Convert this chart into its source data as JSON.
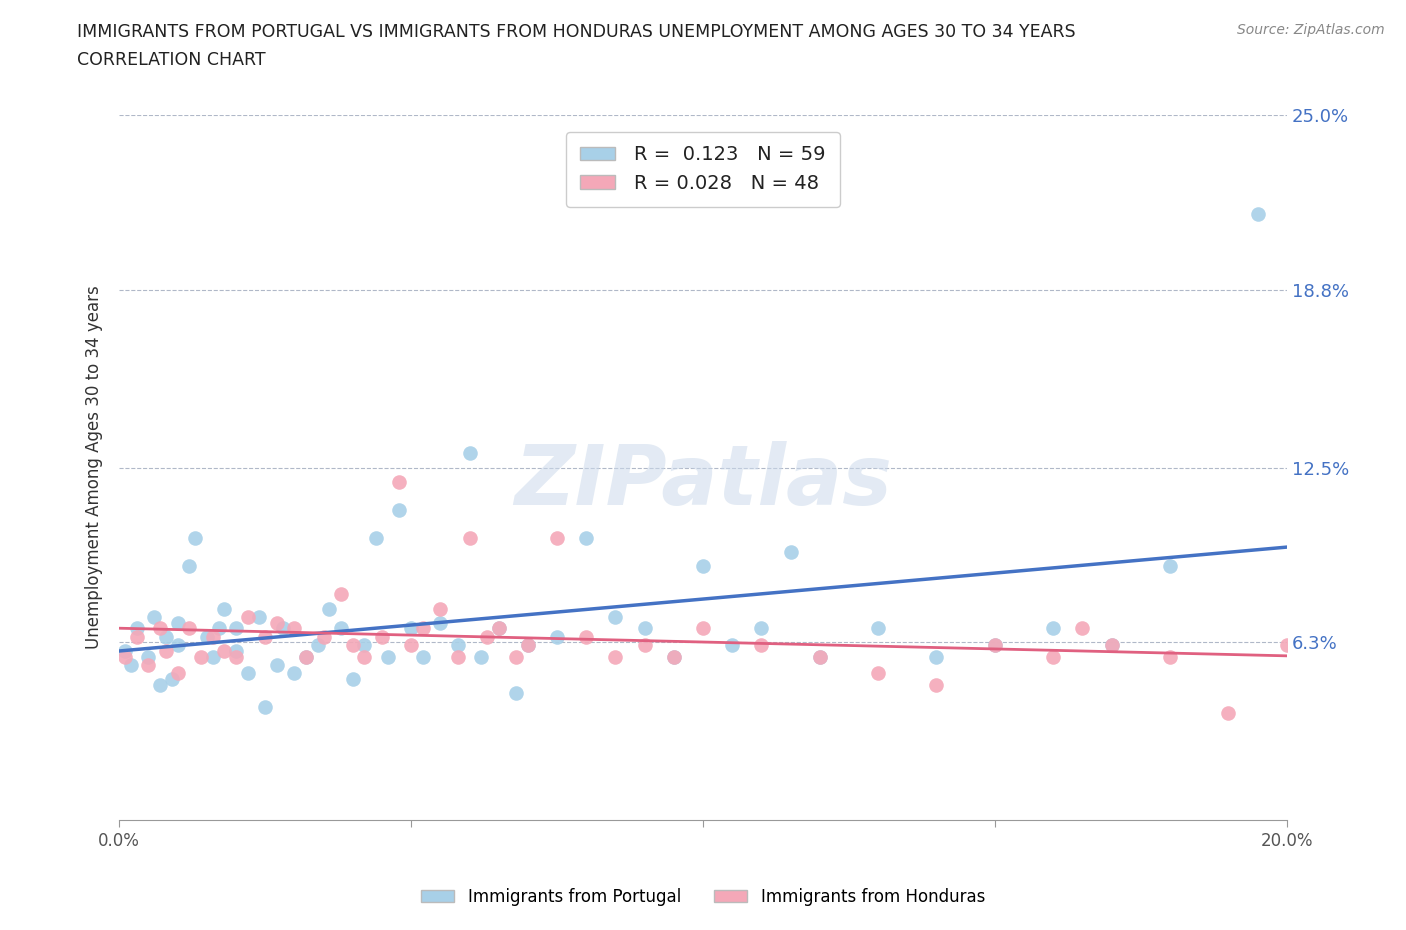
{
  "title_line1": "IMMIGRANTS FROM PORTUGAL VS IMMIGRANTS FROM HONDURAS UNEMPLOYMENT AMONG AGES 30 TO 34 YEARS",
  "title_line2": "CORRELATION CHART",
  "source_text": "Source: ZipAtlas.com",
  "ylabel": "Unemployment Among Ages 30 to 34 years",
  "xlim": [
    0.0,
    0.2
  ],
  "ylim": [
    0.0,
    0.25
  ],
  "ytick_values": [
    0.0,
    0.063,
    0.125,
    0.188,
    0.25
  ],
  "ytick_labels": [
    "",
    "6.3%",
    "12.5%",
    "18.8%",
    "25.0%"
  ],
  "xtick_values": [
    0.0,
    0.05,
    0.1,
    0.15,
    0.2
  ],
  "xtick_labels": [
    "0.0%",
    "",
    "",
    "",
    "20.0%"
  ],
  "legend_label1": "Immigrants from Portugal",
  "legend_label2": "Immigrants from Honduras",
  "R1": 0.123,
  "N1": 59,
  "R2": 0.028,
  "N2": 48,
  "color_portugal": "#a8d0e8",
  "color_honduras": "#f4a8b8",
  "line_color_portugal": "#4472c4",
  "line_color_honduras": "#e06080",
  "portugal_x": [
    0.001,
    0.002,
    0.003,
    0.005,
    0.006,
    0.007,
    0.008,
    0.009,
    0.01,
    0.01,
    0.012,
    0.013,
    0.015,
    0.016,
    0.017,
    0.018,
    0.02,
    0.02,
    0.022,
    0.024,
    0.025,
    0.027,
    0.028,
    0.03,
    0.032,
    0.034,
    0.036,
    0.038,
    0.04,
    0.042,
    0.044,
    0.046,
    0.048,
    0.05,
    0.052,
    0.055,
    0.058,
    0.06,
    0.062,
    0.065,
    0.068,
    0.07,
    0.075,
    0.08,
    0.085,
    0.09,
    0.095,
    0.1,
    0.105,
    0.11,
    0.115,
    0.12,
    0.13,
    0.14,
    0.15,
    0.16,
    0.17,
    0.18,
    0.195
  ],
  "portugal_y": [
    0.06,
    0.055,
    0.068,
    0.058,
    0.072,
    0.048,
    0.065,
    0.05,
    0.07,
    0.062,
    0.09,
    0.1,
    0.065,
    0.058,
    0.068,
    0.075,
    0.06,
    0.068,
    0.052,
    0.072,
    0.04,
    0.055,
    0.068,
    0.052,
    0.058,
    0.062,
    0.075,
    0.068,
    0.05,
    0.062,
    0.1,
    0.058,
    0.11,
    0.068,
    0.058,
    0.07,
    0.062,
    0.13,
    0.058,
    0.068,
    0.045,
    0.062,
    0.065,
    0.1,
    0.072,
    0.068,
    0.058,
    0.09,
    0.062,
    0.068,
    0.095,
    0.058,
    0.068,
    0.058,
    0.062,
    0.068,
    0.062,
    0.09,
    0.215
  ],
  "honduras_x": [
    0.001,
    0.003,
    0.005,
    0.007,
    0.008,
    0.01,
    0.012,
    0.014,
    0.016,
    0.018,
    0.02,
    0.022,
    0.025,
    0.027,
    0.03,
    0.032,
    0.035,
    0.038,
    0.04,
    0.042,
    0.045,
    0.048,
    0.05,
    0.052,
    0.055,
    0.058,
    0.06,
    0.063,
    0.065,
    0.068,
    0.07,
    0.075,
    0.08,
    0.085,
    0.09,
    0.095,
    0.1,
    0.11,
    0.12,
    0.13,
    0.14,
    0.15,
    0.16,
    0.165,
    0.17,
    0.18,
    0.19,
    0.2
  ],
  "honduras_y": [
    0.058,
    0.065,
    0.055,
    0.068,
    0.06,
    0.052,
    0.068,
    0.058,
    0.065,
    0.06,
    0.058,
    0.072,
    0.065,
    0.07,
    0.068,
    0.058,
    0.065,
    0.08,
    0.062,
    0.058,
    0.065,
    0.12,
    0.062,
    0.068,
    0.075,
    0.058,
    0.1,
    0.065,
    0.068,
    0.058,
    0.062,
    0.1,
    0.065,
    0.058,
    0.062,
    0.058,
    0.068,
    0.062,
    0.058,
    0.052,
    0.048,
    0.062,
    0.058,
    0.068,
    0.062,
    0.058,
    0.038,
    0.062
  ]
}
